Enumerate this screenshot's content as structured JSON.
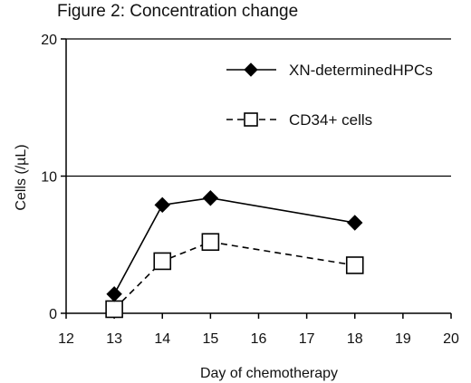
{
  "chart_data": {
    "type": "line",
    "title": "Figure 2: Concentration change",
    "xlabel": "Day of chemotherapy",
    "ylabel": "Cells (/µL)",
    "xlim": [
      12,
      20
    ],
    "ylim": [
      0,
      20
    ],
    "xticks": [
      12,
      13,
      14,
      15,
      16,
      17,
      18,
      19,
      20
    ],
    "yticks": [
      0,
      10,
      20
    ],
    "gridlines_y": [
      10,
      20
    ],
    "legend_position": "top-right",
    "series": [
      {
        "name": "XN-determinedHPCs",
        "x": [
          13,
          14,
          15,
          18
        ],
        "values": [
          1.4,
          7.9,
          8.4,
          6.6
        ],
        "marker": "filled-diamond",
        "line_style": "solid",
        "color": "#000000"
      },
      {
        "name": "CD34+ cells",
        "x": [
          13,
          14,
          15,
          18
        ],
        "values": [
          0.3,
          3.8,
          5.2,
          3.5
        ],
        "marker": "open-square",
        "line_style": "dashed",
        "color": "#000000"
      }
    ]
  }
}
